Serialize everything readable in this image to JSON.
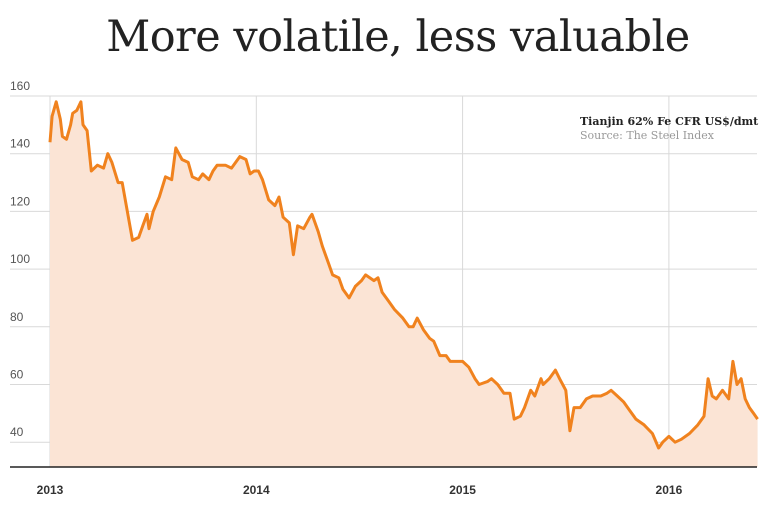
{
  "chart_data": {
    "type": "area",
    "title": "More volatile, less valuable",
    "series_label": "Tianjin 62% Fe CFR US$/dmt",
    "source": "Source: The Steel Index",
    "xlabel": "",
    "ylabel": "",
    "x_ticks": [
      2013,
      2014,
      2015,
      2016
    ],
    "y_ticks": [
      40,
      60,
      80,
      100,
      120,
      140,
      160
    ],
    "xlim": [
      2013,
      2016.43
    ],
    "ylim": [
      31.3,
      160
    ],
    "grid": true,
    "legend_position": "top-right",
    "colors": {
      "line": "#f0821e",
      "fill": "#fbe4d5",
      "grid": "#d9d9d9"
    },
    "points": [
      [
        2013.0,
        144
      ],
      [
        2013.01,
        153
      ],
      [
        2013.03,
        158
      ],
      [
        2013.05,
        152
      ],
      [
        2013.06,
        146
      ],
      [
        2013.08,
        145
      ],
      [
        2013.1,
        150
      ],
      [
        2013.11,
        154
      ],
      [
        2013.13,
        155
      ],
      [
        2013.15,
        158
      ],
      [
        2013.16,
        150
      ],
      [
        2013.18,
        148
      ],
      [
        2013.2,
        134
      ],
      [
        2013.23,
        136
      ],
      [
        2013.26,
        135
      ],
      [
        2013.28,
        140
      ],
      [
        2013.3,
        137
      ],
      [
        2013.33,
        130
      ],
      [
        2013.35,
        130
      ],
      [
        2013.37,
        122
      ],
      [
        2013.4,
        110
      ],
      [
        2013.43,
        111
      ],
      [
        2013.45,
        115
      ],
      [
        2013.47,
        119
      ],
      [
        2013.48,
        114
      ],
      [
        2013.5,
        120
      ],
      [
        2013.53,
        125
      ],
      [
        2013.56,
        132
      ],
      [
        2013.59,
        131
      ],
      [
        2013.61,
        142
      ],
      [
        2013.64,
        138
      ],
      [
        2013.67,
        137
      ],
      [
        2013.69,
        132
      ],
      [
        2013.72,
        131
      ],
      [
        2013.74,
        133
      ],
      [
        2013.77,
        131
      ],
      [
        2013.79,
        134
      ],
      [
        2013.81,
        136
      ],
      [
        2013.85,
        136
      ],
      [
        2013.88,
        135
      ],
      [
        2013.92,
        139
      ],
      [
        2013.95,
        138
      ],
      [
        2013.97,
        133
      ],
      [
        2013.99,
        134
      ],
      [
        2014.01,
        134
      ],
      [
        2014.03,
        131
      ],
      [
        2014.06,
        124
      ],
      [
        2014.09,
        122
      ],
      [
        2014.11,
        125
      ],
      [
        2014.13,
        118
      ],
      [
        2014.16,
        116
      ],
      [
        2014.18,
        105
      ],
      [
        2014.2,
        115
      ],
      [
        2014.23,
        114
      ],
      [
        2014.26,
        118
      ],
      [
        2014.27,
        119
      ],
      [
        2014.3,
        113
      ],
      [
        2014.32,
        108
      ],
      [
        2014.35,
        102
      ],
      [
        2014.37,
        98
      ],
      [
        2014.4,
        97
      ],
      [
        2014.42,
        93
      ],
      [
        2014.45,
        90
      ],
      [
        2014.48,
        94
      ],
      [
        2014.51,
        96
      ],
      [
        2014.53,
        98
      ],
      [
        2014.57,
        96
      ],
      [
        2014.59,
        97
      ],
      [
        2014.61,
        92
      ],
      [
        2014.64,
        89
      ],
      [
        2014.67,
        86
      ],
      [
        2014.71,
        83
      ],
      [
        2014.74,
        80
      ],
      [
        2014.76,
        80
      ],
      [
        2014.78,
        83
      ],
      [
        2014.81,
        79
      ],
      [
        2014.84,
        76
      ],
      [
        2014.86,
        75
      ],
      [
        2014.89,
        70
      ],
      [
        2014.92,
        70
      ],
      [
        2014.94,
        68
      ],
      [
        2014.97,
        68
      ],
      [
        2015.0,
        68
      ],
      [
        2015.03,
        66
      ],
      [
        2015.06,
        62
      ],
      [
        2015.08,
        60
      ],
      [
        2015.12,
        61
      ],
      [
        2015.14,
        62
      ],
      [
        2015.17,
        60
      ],
      [
        2015.2,
        57
      ],
      [
        2015.23,
        57
      ],
      [
        2015.25,
        48
      ],
      [
        2015.28,
        49
      ],
      [
        2015.3,
        52
      ],
      [
        2015.33,
        58
      ],
      [
        2015.35,
        56
      ],
      [
        2015.38,
        62
      ],
      [
        2015.39,
        60
      ],
      [
        2015.42,
        62
      ],
      [
        2015.45,
        65
      ],
      [
        2015.47,
        62
      ],
      [
        2015.5,
        58
      ],
      [
        2015.52,
        44
      ],
      [
        2015.54,
        52
      ],
      [
        2015.57,
        52
      ],
      [
        2015.6,
        55
      ],
      [
        2015.63,
        56
      ],
      [
        2015.67,
        56
      ],
      [
        2015.7,
        57
      ],
      [
        2015.72,
        58
      ],
      [
        2015.75,
        56
      ],
      [
        2015.78,
        54
      ],
      [
        2015.81,
        51
      ],
      [
        2015.84,
        48
      ],
      [
        2015.88,
        46
      ],
      [
        2015.92,
        43
      ],
      [
        2015.95,
        38
      ],
      [
        2015.97,
        40
      ],
      [
        2016.0,
        42
      ],
      [
        2016.03,
        40
      ],
      [
        2016.06,
        41
      ],
      [
        2016.1,
        43
      ],
      [
        2016.14,
        46
      ],
      [
        2016.17,
        49
      ],
      [
        2016.19,
        62
      ],
      [
        2016.21,
        56
      ],
      [
        2016.23,
        55
      ],
      [
        2016.26,
        58
      ],
      [
        2016.29,
        55
      ],
      [
        2016.31,
        68
      ],
      [
        2016.33,
        60
      ],
      [
        2016.35,
        62
      ],
      [
        2016.37,
        55
      ],
      [
        2016.39,
        52
      ],
      [
        2016.41,
        50
      ],
      [
        2016.43,
        48
      ]
    ]
  }
}
